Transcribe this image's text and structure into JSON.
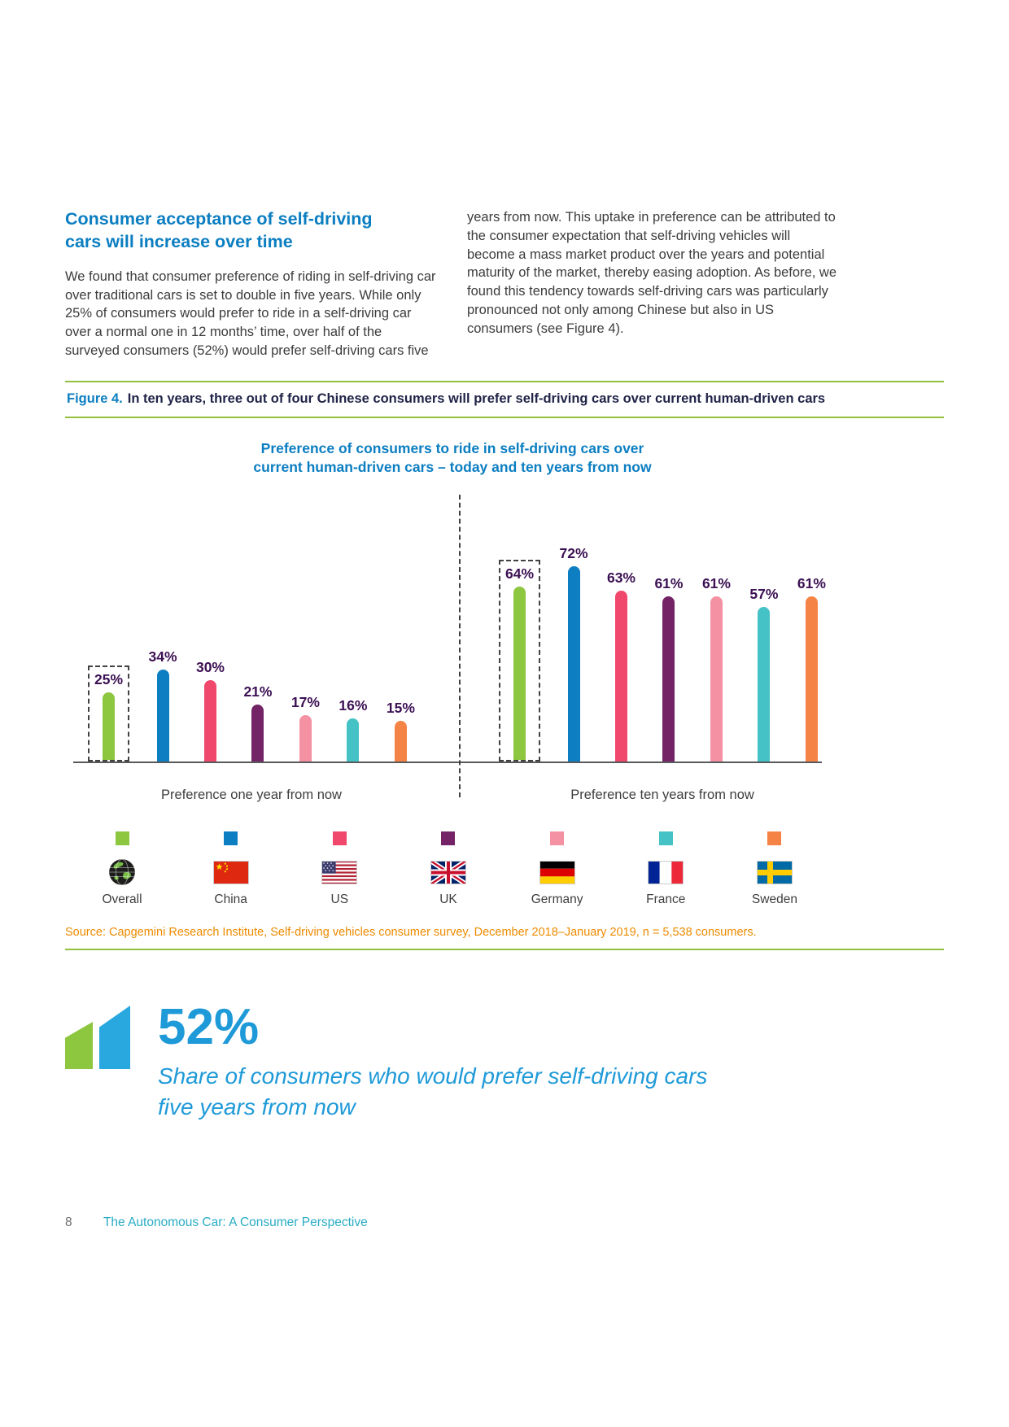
{
  "intro": {
    "heading": "Consumer acceptance of self-driving cars will increase over time",
    "col_left": "We found that consumer preference of riding in self-driving car over traditional cars is set to double in five years. While only 25% of consumers would prefer to ride in a self-driving car over a normal one in 12 months’ time, over half of the surveyed consumers (52%) would prefer self-driving cars five",
    "col_right": "years from now. This uptake in preference can be attributed to the consumer expectation that self-driving vehicles will become a mass market product over the years and potential maturity of the market, thereby easing adoption. As before, we found this tendency towards self-driving cars was particularly pronounced not only among Chinese but also in US consumers (see Figure 4)."
  },
  "figure": {
    "label": "Figure 4.",
    "caption": "In ten years, three out of four Chinese consumers will prefer self-driving cars over current human-driven cars"
  },
  "chart_data": {
    "type": "bar",
    "title_line1": "Preference of consumers to ride in self-driving cars over",
    "title_line2": "current human-driven cars – today and ten years from now",
    "unit": "%",
    "series": [
      "Overall",
      "China",
      "US",
      "UK",
      "Germany",
      "France",
      "Sweden"
    ],
    "colors": [
      "#8DC63F",
      "#0E7EC2",
      "#F0476C",
      "#732366",
      "#F491A3",
      "#45C2C5",
      "#F58345"
    ],
    "groups": [
      {
        "label": "Preference one year from now",
        "values": [
          25,
          34,
          30,
          21,
          17,
          16,
          15
        ]
      },
      {
        "label": "Preference ten years from now",
        "values": [
          64,
          72,
          63,
          61,
          61,
          57,
          61
        ]
      }
    ],
    "highlighted_series": "Overall",
    "ylim": [
      0,
      80
    ],
    "value_labels": true,
    "legend_position": "bottom"
  },
  "legend": {
    "items": [
      {
        "label": "Overall",
        "color": "#8DC63F",
        "flag": "globe-icon"
      },
      {
        "label": "China",
        "color": "#0E7EC2",
        "flag": "china-flag-icon"
      },
      {
        "label": "US",
        "color": "#F0476C",
        "flag": "us-flag-icon"
      },
      {
        "label": "UK",
        "color": "#732366",
        "flag": "uk-flag-icon"
      },
      {
        "label": "Germany",
        "color": "#F491A3",
        "flag": "germany-flag-icon"
      },
      {
        "label": "France",
        "color": "#45C2C5",
        "flag": "france-flag-icon"
      },
      {
        "label": "Sweden",
        "color": "#F58345",
        "flag": "sweden-flag-icon"
      }
    ]
  },
  "source": "Source: Capgemini Research Institute, Self-driving vehicles consumer survey, December 2018–January 2019, n = 5,538 consumers.",
  "quote": {
    "stat": "52%",
    "line1": "Share of consumers who would prefer self-driving cars",
    "line2": "five years from now"
  },
  "footer": {
    "page_number": "8",
    "doc_title": "The Autonomous Car: A Consumer Perspective"
  },
  "colors": {
    "accent_green": "#94C13D",
    "heading_blue": "#0B7EC1",
    "value_label_purple": "#3C1053",
    "source_orange": "#ED8B00",
    "quote_blue": "#1F9AD8",
    "footer_teal": "#29ACC4"
  }
}
